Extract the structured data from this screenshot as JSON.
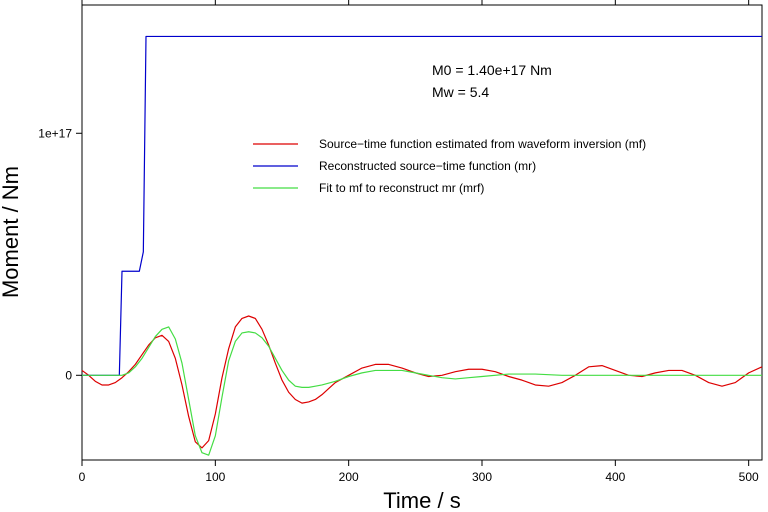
{
  "chart_data": {
    "type": "line",
    "xlabel": "Time / s",
    "ylabel": "Moment / Nm",
    "xlim": [
      0,
      510
    ],
    "ylim": [
      -3.5e+16,
      1.53e+17
    ],
    "x_ticks": [
      0,
      100,
      200,
      300,
      400,
      500
    ],
    "x_tick_labels": [
      "0",
      "100",
      "200",
      "300",
      "400",
      "500"
    ],
    "y_ticks": [
      0,
      1e+17
    ],
    "y_tick_labels": [
      "0",
      "1e+17"
    ],
    "grid": false,
    "legend_position": "upper-right",
    "annotations": [
      "M0 = 1.40e+17 Nm",
      "Mw = 5.4"
    ],
    "series": [
      {
        "name": "Source−time function estimated from waveform inversion (mf)",
        "color": "#dd0000",
        "x": [
          0,
          5,
          10,
          15,
          20,
          25,
          30,
          35,
          40,
          45,
          50,
          55,
          60,
          65,
          70,
          75,
          80,
          85,
          90,
          95,
          100,
          105,
          110,
          115,
          120,
          125,
          130,
          135,
          140,
          145,
          150,
          155,
          160,
          165,
          170,
          175,
          180,
          185,
          190,
          200,
          210,
          220,
          230,
          240,
          250,
          260,
          270,
          280,
          290,
          300,
          310,
          320,
          330,
          340,
          350,
          360,
          370,
          380,
          390,
          400,
          410,
          420,
          430,
          440,
          450,
          460,
          470,
          480,
          490,
          500,
          510
        ],
        "y": [
          2000000000000000.0,
          0,
          -2500000000000000.0,
          -4000000000000000.0,
          -4000000000000000.0,
          -3000000000000000.0,
          -1000000000000000.0,
          1500000000000000.0,
          4500000000000000.0,
          8500000000000000.0,
          1.25e+16,
          1.55e+16,
          1.65e+16,
          1.4e+16,
          7000000000000000.0,
          -4000000000000000.0,
          -1.7e+16,
          -2.75e+16,
          -3e+16,
          -2.7e+16,
          -1.6e+16,
          -1000000000000000.0,
          1.1e+16,
          2e+16,
          2.35e+16,
          2.45e+16,
          2.35e+16,
          1.9e+16,
          1.25e+16,
          5000000000000000.0,
          -2000000000000000.0,
          -7000000000000000.0,
          -1e+16,
          -1.15e+16,
          -1.1e+16,
          -1e+16,
          -8000000000000000.0,
          -5500000000000000.0,
          -3000000000000000.0,
          0,
          3000000000000000.0,
          4500000000000000.0,
          4500000000000000.0,
          3000000000000000.0,
          1000000000000000.0,
          -500000000000000.0,
          0,
          1500000000000000.0,
          2500000000000000.0,
          2500000000000000.0,
          1500000000000000.0,
          -500000000000000.0,
          -2000000000000000.0,
          -4000000000000000.0,
          -4500000000000000.0,
          -3000000000000000.0,
          0,
          3500000000000000.0,
          4000000000000000.0,
          2000000000000000.0,
          0,
          -500000000000000.0,
          1000000000000000.0,
          2000000000000000.0,
          2000000000000000.0,
          0,
          -3000000000000000.0,
          -4500000000000000.0,
          -3000000000000000.0,
          1000000000000000.0,
          3500000000000000.0
        ]
      },
      {
        "name": "Reconstructed source−time function (mr)",
        "color": "#0000cc",
        "x": [
          0,
          28,
          30,
          43,
          46,
          48,
          510
        ],
        "y": [
          0,
          0,
          4.3e+16,
          4.3e+16,
          5.1e+16,
          1.4e+17,
          1.4e+17
        ]
      },
      {
        "name": "Fit to mf to reconstruct mr (mrf)",
        "color": "#44dd44",
        "x": [
          0,
          10,
          20,
          30,
          35,
          40,
          45,
          50,
          55,
          60,
          65,
          70,
          75,
          80,
          85,
          90,
          95,
          100,
          105,
          110,
          115,
          120,
          125,
          130,
          135,
          140,
          145,
          150,
          155,
          160,
          165,
          170,
          175,
          180,
          190,
          200,
          210,
          220,
          230,
          240,
          250,
          260,
          270,
          280,
          290,
          300,
          320,
          340,
          360,
          380,
          400,
          420,
          440,
          460,
          480,
          500,
          510
        ],
        "y": [
          0,
          0,
          0,
          0,
          1000000000000000.0,
          3500000000000000.0,
          7000000000000000.0,
          1.15e+16,
          1.6e+16,
          1.9e+16,
          2e+16,
          1.5e+16,
          5000000000000000.0,
          -1e+16,
          -2.5e+16,
          -3.2e+16,
          -3.3e+16,
          -2.5e+16,
          -9000000000000000.0,
          6000000000000000.0,
          1.4e+16,
          1.75e+16,
          1.8e+16,
          1.75e+16,
          1.55e+16,
          1.2e+16,
          7000000000000000.0,
          2000000000000000.0,
          -2000000000000000.0,
          -4500000000000000.0,
          -5000000000000000.0,
          -5000000000000000.0,
          -4500000000000000.0,
          -4000000000000000.0,
          -2500000000000000.0,
          -500000000000000.0,
          1000000000000000.0,
          2000000000000000.0,
          2000000000000000.0,
          2000000000000000.0,
          1000000000000000.0,
          0,
          -1000000000000000.0,
          -1500000000000000.0,
          -1000000000000000.0,
          -500000000000000.0,
          500000000000000.0,
          500000000000000.0,
          0,
          0,
          0,
          0,
          0,
          0,
          0,
          0,
          0
        ]
      }
    ]
  }
}
